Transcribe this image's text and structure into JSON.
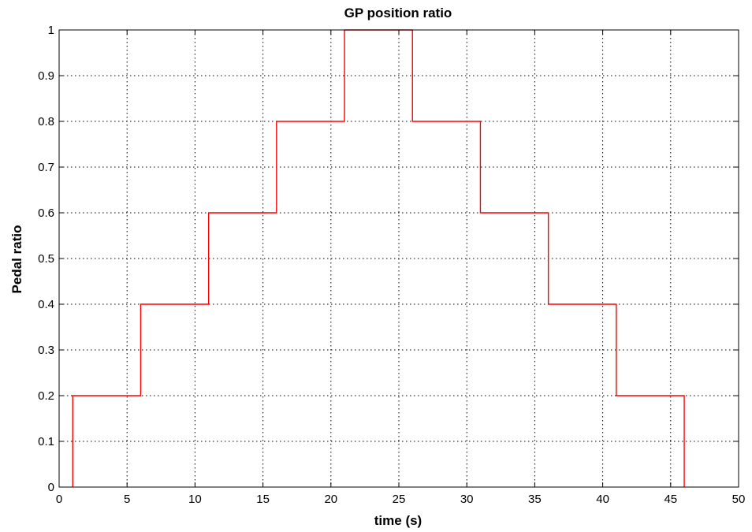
{
  "chart_data": {
    "type": "line",
    "title": "GP position ratio",
    "xlabel": "time (s)",
    "ylabel": "Pedal ratio",
    "xlim": [
      0,
      50
    ],
    "ylim": [
      0,
      1
    ],
    "xticks": [
      0,
      5,
      10,
      15,
      20,
      25,
      30,
      35,
      40,
      45,
      50
    ],
    "xtick_labels": [
      "0",
      "5",
      "10",
      "15",
      "20",
      "25",
      "30",
      "35",
      "40",
      "45",
      "50"
    ],
    "yticks": [
      0,
      0.1,
      0.2,
      0.3,
      0.4,
      0.5,
      0.6,
      0.7,
      0.8,
      0.9,
      1
    ],
    "ytick_labels": [
      "0",
      "0.1",
      "0.2",
      "0.3",
      "0.4",
      "0.5",
      "0.6",
      "0.7",
      "0.8",
      "0.9",
      "1"
    ],
    "grid": true,
    "series": [
      {
        "color": "#ff0000",
        "step": "post",
        "x": [
          1,
          1,
          6,
          6,
          11,
          11,
          16,
          16,
          21,
          21,
          26,
          26,
          31,
          31,
          36,
          36,
          41,
          41,
          46,
          46
        ],
        "y": [
          0,
          0.2,
          0.2,
          0.4,
          0.4,
          0.6,
          0.6,
          0.8,
          0.8,
          1.0,
          1.0,
          0.8,
          0.8,
          0.6,
          0.6,
          0.4,
          0.4,
          0.2,
          0.2,
          0
        ]
      }
    ]
  }
}
